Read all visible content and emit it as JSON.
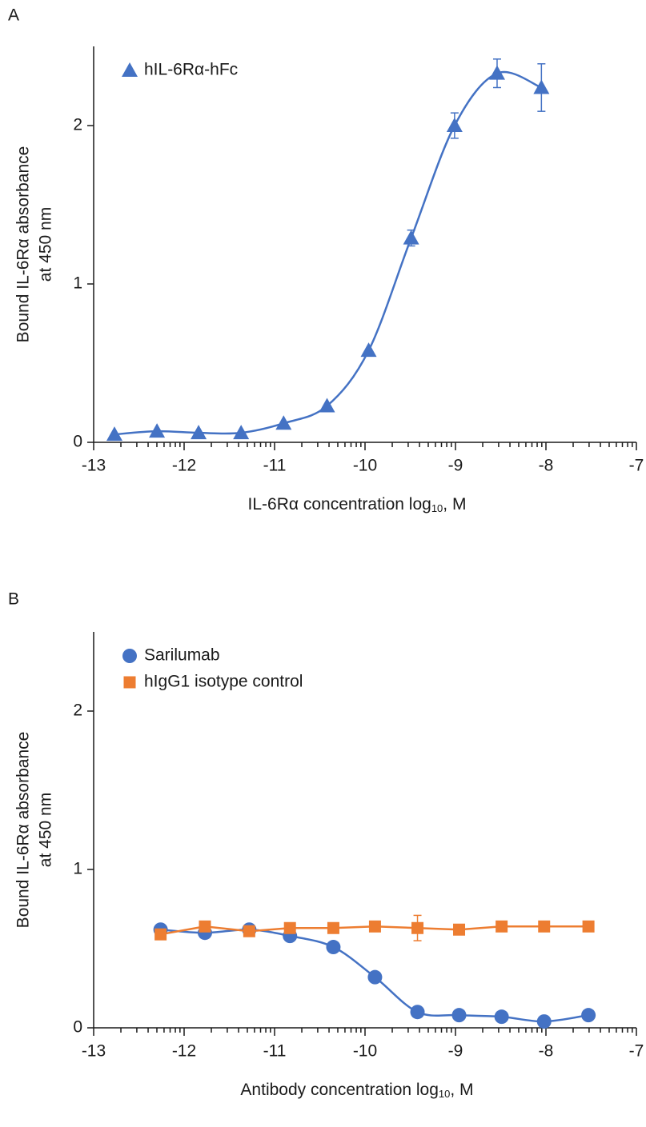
{
  "chart_data": [
    {
      "type": "line",
      "panel_label": "A",
      "y_label": [
        "Bound IL-6Rα absorbance",
        "at 450 nm"
      ],
      "x_label": [
        "IL-6Rα concentration log",
        "10",
        ", M"
      ],
      "xlim": [
        -13,
        -7
      ],
      "xticks": [
        -13,
        -12,
        -11,
        -10,
        -9,
        -8,
        -7
      ],
      "minor_ticks": "log",
      "ylim": [
        0,
        2.5
      ],
      "yticks": [
        0,
        1,
        2
      ],
      "legend": "upper left",
      "series": [
        {
          "name": "hIL-6Rα-hFc",
          "color": "#4472c4",
          "marker": "triangle",
          "curve": "smooth",
          "x": [
            -12.77,
            -12.3,
            -11.84,
            -11.37,
            -10.9,
            -10.42,
            -9.96,
            -9.49,
            -9.01,
            -8.54,
            -8.05
          ],
          "values": [
            0.05,
            0.07,
            0.06,
            0.06,
            0.12,
            0.23,
            0.58,
            1.29,
            2.0,
            2.33,
            2.24
          ],
          "errors": [
            null,
            null,
            null,
            null,
            null,
            null,
            null,
            0.05,
            0.08,
            0.09,
            0.15
          ]
        }
      ]
    },
    {
      "type": "line",
      "panel_label": "B",
      "y_label": [
        "Bound IL-6Rα absorbance",
        "at 450 nm"
      ],
      "x_label": [
        "Antibody concentration log",
        "10",
        ", M"
      ],
      "xlim": [
        -13,
        -7
      ],
      "xticks": [
        -13,
        -12,
        -11,
        -10,
        -9,
        -8,
        -7
      ],
      "minor_ticks": "log",
      "ylim": [
        0,
        2.5
      ],
      "yticks": [
        0,
        1,
        2
      ],
      "legend": "upper left",
      "series": [
        {
          "name": "Sarilumab",
          "color": "#4472c4",
          "marker": "circle",
          "curve": "smooth",
          "x": [
            -12.26,
            -11.77,
            -11.28,
            -10.83,
            -10.35,
            -9.89,
            -9.42,
            -8.96,
            -8.49,
            -8.02,
            -7.53
          ],
          "values": [
            0.62,
            0.6,
            0.62,
            0.58,
            0.51,
            0.32,
            0.1,
            0.08,
            0.07,
            0.04,
            0.08
          ],
          "errors": [
            null,
            null,
            null,
            null,
            null,
            null,
            null,
            null,
            null,
            null,
            null
          ]
        },
        {
          "name": "hIgG1 isotype control",
          "color": "#ed7d31",
          "marker": "square",
          "curve": "linear",
          "x": [
            -12.26,
            -11.77,
            -11.28,
            -10.83,
            -10.35,
            -9.89,
            -9.42,
            -8.96,
            -8.49,
            -8.02,
            -7.53
          ],
          "values": [
            0.59,
            0.64,
            0.61,
            0.63,
            0.63,
            0.64,
            0.63,
            0.62,
            0.64,
            0.64,
            0.64
          ],
          "errors": [
            null,
            null,
            null,
            null,
            null,
            null,
            0.08,
            null,
            null,
            null,
            null
          ]
        }
      ]
    }
  ]
}
